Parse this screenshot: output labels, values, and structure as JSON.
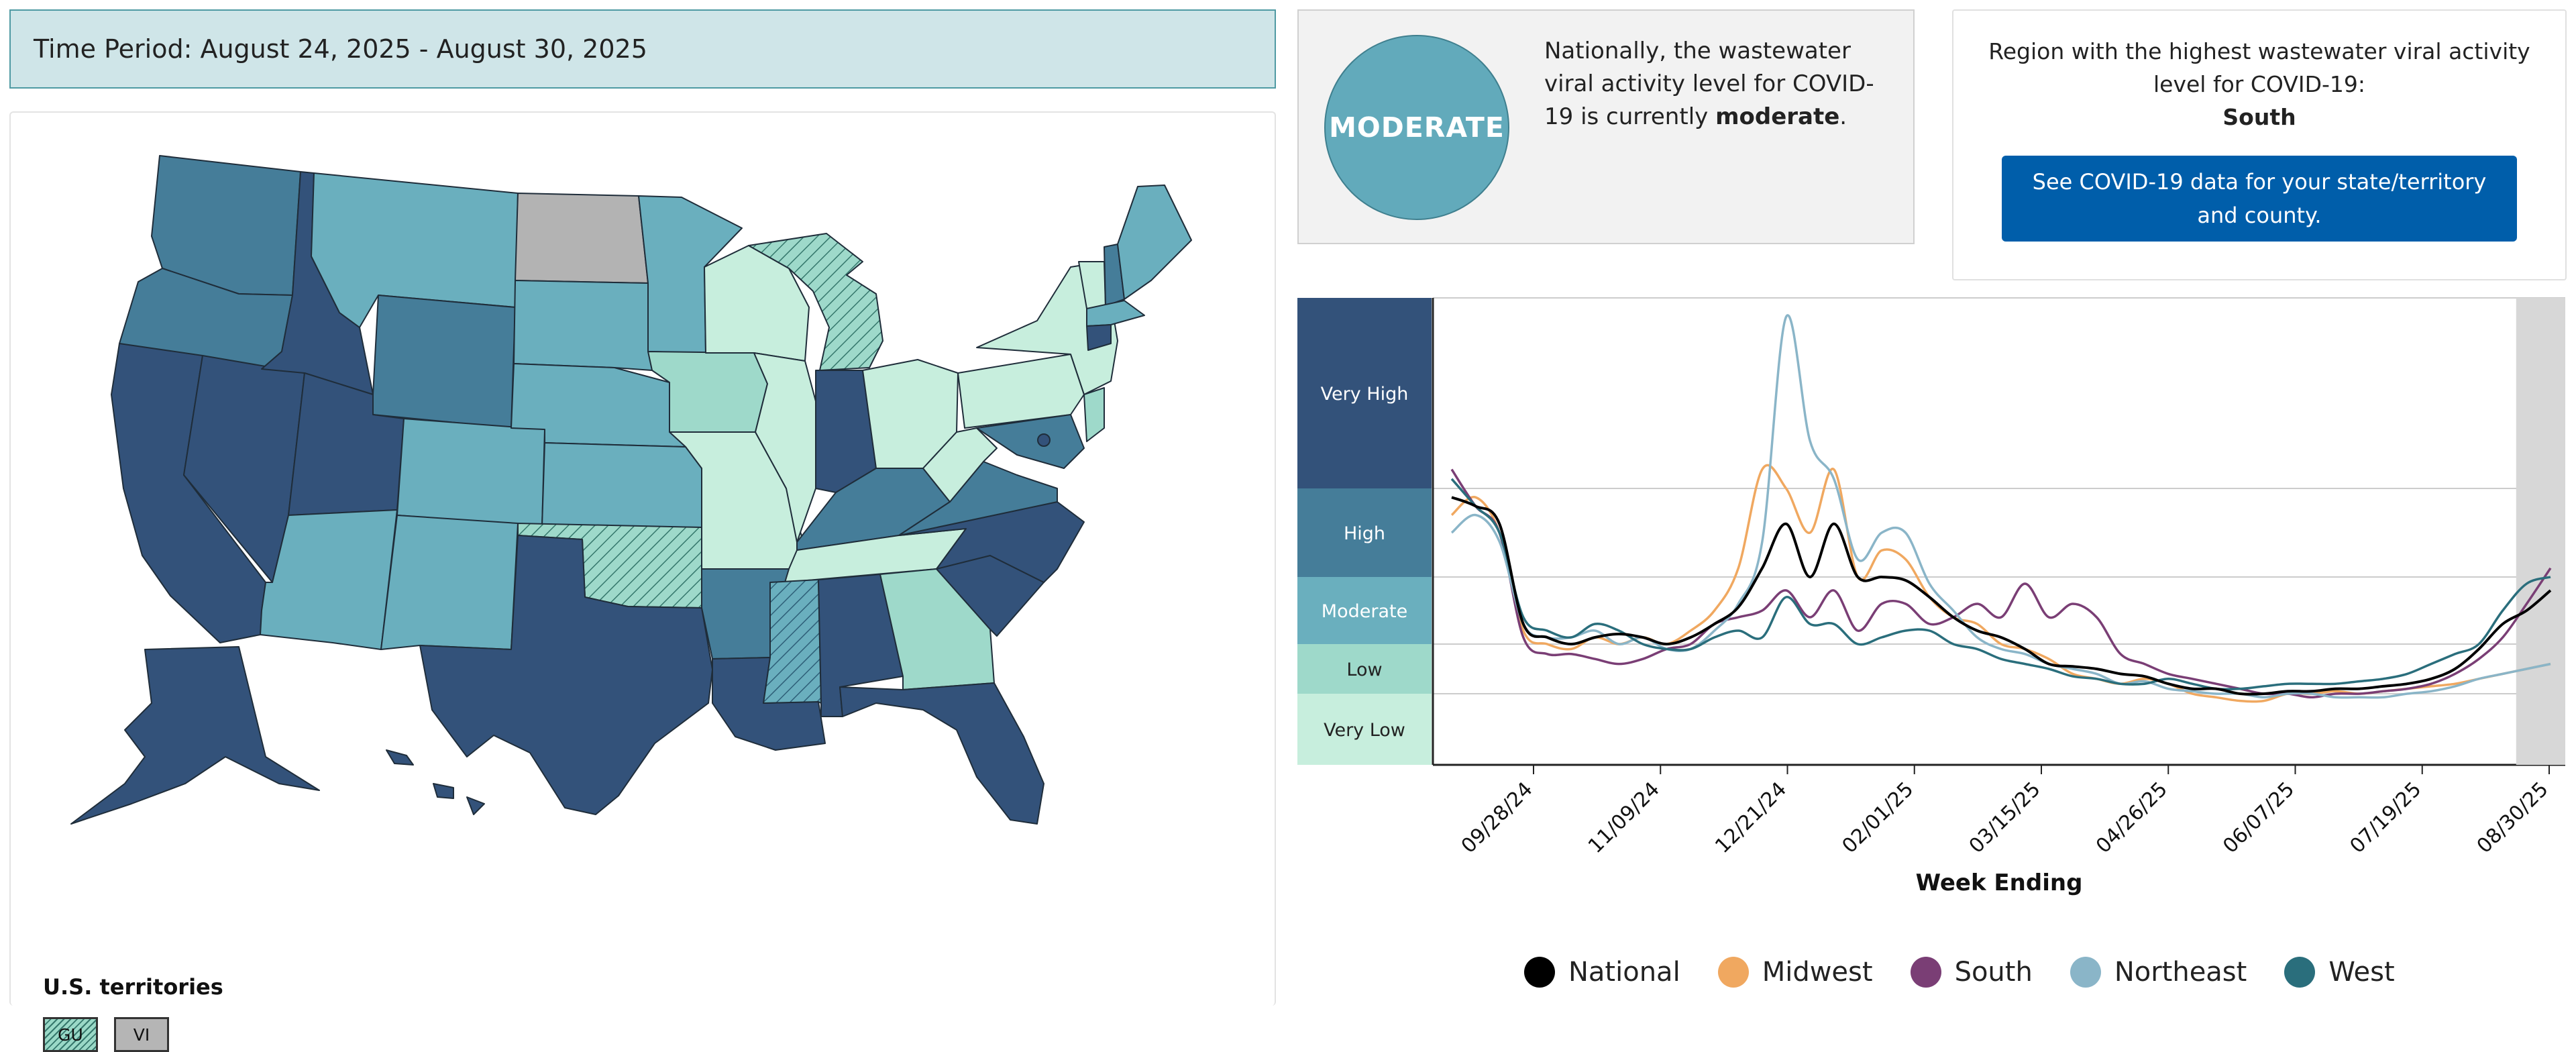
{
  "time_period": "Time Period: August 24, 2025 - August 30, 2025",
  "national": {
    "level_badge": "MODERATE",
    "text_before": "Nationally, the wastewater viral activity level for COVID-19 is currently",
    "level_word": "moderate",
    "text_after": "."
  },
  "region": {
    "label": "Region with the highest wastewater viral activity level for COVID-19:",
    "name": "South",
    "button_label": "See COVID-19 data for your state/territory and county."
  },
  "map": {
    "territories_title": "U.S. territories",
    "territories": [
      "GU",
      "VI"
    ],
    "level_colors": {
      "very_high": "#33527a",
      "high": "#457d99",
      "moderate": "#6aafbe",
      "low": "#9ed9ca",
      "very_low": "#c7eedd",
      "no_data": "#b3b3b3"
    }
  },
  "colors": {
    "cta_blue": "#005eaa",
    "period_bg": "#cfe5e8",
    "moderate_circle": "#62aabb"
  },
  "chart_data": {
    "type": "line",
    "xlabel": "Week Ending",
    "x_tick_labels": [
      "09/28/24",
      "11/09/24",
      "12/21/24",
      "02/01/25",
      "03/15/25",
      "04/26/25",
      "06/07/25",
      "07/19/25",
      "08/30/25"
    ],
    "y_bands": [
      {
        "label": "Very High",
        "color": "#33527a"
      },
      {
        "label": "High",
        "color": "#457d99"
      },
      {
        "label": "Moderate",
        "color": "#6aafbe"
      },
      {
        "label": "Low",
        "color": "#9ed9ca"
      },
      {
        "label": "Very Low",
        "color": "#c7eedd"
      }
    ],
    "highlight_last_weeks": 2,
    "series": [
      {
        "name": "National",
        "color": "#000000",
        "values": [
          3.9,
          3.8,
          3.6,
          2.3,
          2.1,
          2.0,
          2.1,
          2.15,
          2.1,
          2.0,
          2.1,
          2.3,
          2.55,
          3.1,
          3.6,
          3.0,
          3.6,
          3.0,
          3.0,
          2.95,
          2.7,
          2.4,
          2.2,
          2.1,
          1.9,
          1.6,
          1.55,
          1.5,
          1.4,
          1.35,
          1.2,
          1.1,
          1.1,
          1.0,
          1.0,
          1.05,
          1.05,
          1.1,
          1.1,
          1.15,
          1.2,
          1.3,
          1.5,
          1.9,
          2.3,
          2.5,
          2.8
        ]
      },
      {
        "name": "Midwest",
        "color": "#f0a860",
        "values": [
          3.7,
          3.9,
          3.5,
          2.2,
          2.0,
          1.9,
          2.1,
          2.0,
          2.1,
          2.0,
          2.2,
          2.5,
          3.1,
          4.2,
          4.0,
          3.5,
          4.2,
          3.0,
          3.3,
          3.2,
          2.7,
          2.4,
          2.3,
          2.0,
          1.9,
          1.7,
          1.4,
          1.3,
          1.2,
          1.3,
          1.2,
          1.0,
          0.95,
          0.9,
          0.9,
          1.0,
          1.0,
          1.05,
          1.0,
          1.05,
          1.1,
          1.15,
          1.2,
          1.3,
          1.4,
          1.5,
          1.6
        ]
      },
      {
        "name": "South",
        "color": "#7a3e75",
        "values": [
          4.2,
          3.8,
          3.5,
          2.1,
          1.8,
          1.8,
          1.7,
          1.6,
          1.7,
          1.9,
          2.0,
          2.3,
          2.4,
          2.5,
          2.8,
          2.4,
          2.8,
          2.2,
          2.6,
          2.6,
          2.3,
          2.4,
          2.6,
          2.4,
          2.9,
          2.4,
          2.6,
          2.4,
          1.8,
          1.6,
          1.4,
          1.3,
          1.2,
          1.1,
          1.0,
          1.0,
          0.95,
          1.0,
          1.0,
          1.05,
          1.1,
          1.2,
          1.4,
          1.7,
          2.1,
          2.6,
          3.1
        ]
      },
      {
        "name": "Northeast",
        "color": "#8ab5c8",
        "values": [
          3.5,
          3.7,
          3.4,
          2.3,
          2.1,
          2.1,
          2.2,
          2.0,
          2.1,
          1.9,
          1.9,
          2.2,
          2.6,
          3.4,
          5.8,
          4.5,
          4.1,
          3.2,
          3.5,
          3.5,
          2.9,
          2.5,
          2.1,
          1.9,
          1.8,
          1.6,
          1.5,
          1.4,
          1.2,
          1.25,
          1.1,
          1.05,
          1.0,
          1.0,
          0.95,
          1.0,
          1.0,
          0.95,
          0.95,
          0.95,
          1.0,
          1.05,
          1.15,
          1.3,
          1.4,
          1.5,
          1.6
        ]
      },
      {
        "name": "West",
        "color": "#2a6e7c",
        "values": [
          4.1,
          3.8,
          3.5,
          2.4,
          2.2,
          2.1,
          2.3,
          2.2,
          2.0,
          1.9,
          1.9,
          2.1,
          2.2,
          2.1,
          2.7,
          2.3,
          2.3,
          2.0,
          2.1,
          2.2,
          2.2,
          2.0,
          1.9,
          1.7,
          1.6,
          1.5,
          1.35,
          1.3,
          1.2,
          1.2,
          1.3,
          1.2,
          1.1,
          1.1,
          1.15,
          1.2,
          1.2,
          1.2,
          1.25,
          1.3,
          1.4,
          1.6,
          1.8,
          2.0,
          2.5,
          2.9,
          3.0
        ]
      }
    ]
  }
}
